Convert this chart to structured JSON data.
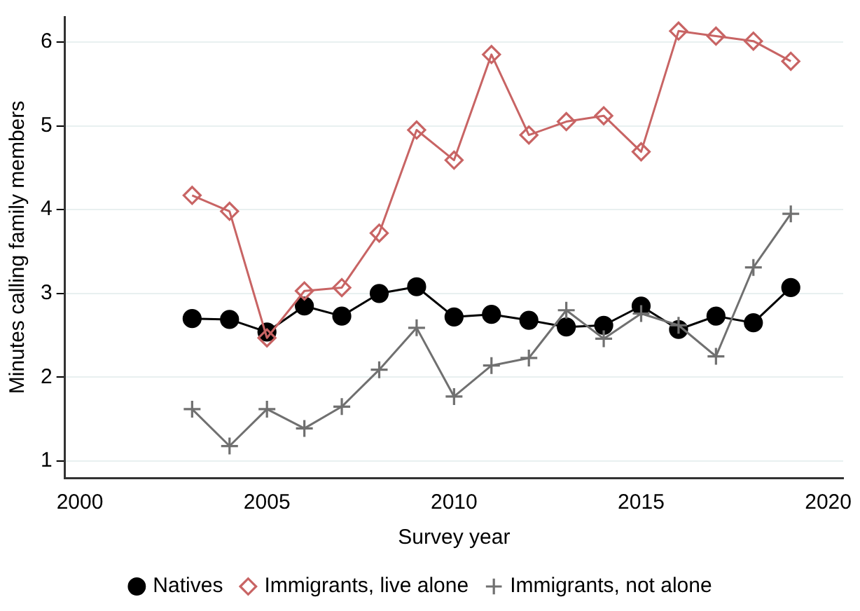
{
  "chart_data": {
    "type": "line",
    "xlabel": "Survey year",
    "ylabel": "Minutes calling family members",
    "x": [
      2003,
      2004,
      2005,
      2006,
      2007,
      2008,
      2009,
      2010,
      2011,
      2012,
      2013,
      2014,
      2015,
      2016,
      2017,
      2018,
      2019
    ],
    "series": [
      {
        "name": "Natives",
        "color": "#000000",
        "marker": "circle",
        "values": [
          2.7,
          2.69,
          2.54,
          2.85,
          2.73,
          3.0,
          3.08,
          2.72,
          2.75,
          2.68,
          2.6,
          2.62,
          2.85,
          2.57,
          2.73,
          2.65,
          3.07
        ]
      },
      {
        "name": "Immigrants, live alone",
        "color": "#c86464",
        "marker": "diamond",
        "values": [
          4.17,
          3.98,
          2.47,
          3.03,
          3.07,
          3.72,
          4.95,
          4.59,
          5.85,
          4.89,
          5.05,
          5.12,
          4.69,
          6.13,
          6.07,
          6.01,
          5.77
        ]
      },
      {
        "name": "Immigrants, not alone",
        "color": "#707070",
        "marker": "cross",
        "values": [
          1.62,
          1.18,
          1.62,
          1.39,
          1.65,
          2.09,
          2.59,
          1.77,
          2.14,
          2.23,
          2.8,
          2.46,
          2.76,
          2.62,
          2.25,
          3.31,
          3.95
        ]
      }
    ],
    "xlim": [
      1999.6,
      2020.4
    ],
    "xticks": [
      2000,
      2005,
      2010,
      2015,
      2020
    ],
    "ylim": [
      0.8,
      6.3
    ],
    "yticks": [
      1,
      2,
      3,
      4,
      5,
      6
    ],
    "grid": "y",
    "legend": "bottom"
  }
}
